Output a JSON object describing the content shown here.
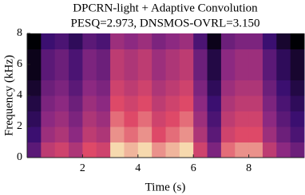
{
  "chart_data": {
    "type": "spectrogram",
    "title": "DPCRN-light + Adaptive Convolution",
    "subtitle": "PESQ=2.973, DNSMOS-OVRL=3.150",
    "x_label": "Time (s)",
    "y_label": "Frequency (kHz)",
    "xlim": [
      0,
      10
    ],
    "ylim": [
      0,
      8
    ],
    "xticks": [
      2,
      4,
      6,
      8
    ],
    "yticks": [
      0,
      2,
      4,
      6,
      8
    ],
    "colormap": [
      "#000004",
      "#3b0f70",
      "#8c2981",
      "#de4968",
      "#fcfdbf"
    ],
    "z": [
      [
        0.35,
        0.65,
        0.7,
        0.6,
        0.75,
        0.7,
        0.95,
        0.9,
        0.95,
        0.85,
        0.9,
        0.95,
        0.7,
        0.45,
        0.8,
        0.85,
        0.85,
        0.65,
        0.5,
        0.4
      ],
      [
        0.25,
        0.55,
        0.6,
        0.5,
        0.65,
        0.6,
        0.85,
        0.8,
        0.85,
        0.75,
        0.8,
        0.85,
        0.6,
        0.35,
        0.7,
        0.75,
        0.75,
        0.55,
        0.4,
        0.3
      ],
      [
        0.2,
        0.5,
        0.55,
        0.45,
        0.6,
        0.55,
        0.8,
        0.75,
        0.8,
        0.7,
        0.75,
        0.8,
        0.55,
        0.3,
        0.65,
        0.7,
        0.7,
        0.5,
        0.35,
        0.25
      ],
      [
        0.15,
        0.45,
        0.5,
        0.4,
        0.55,
        0.5,
        0.75,
        0.7,
        0.75,
        0.65,
        0.7,
        0.75,
        0.5,
        0.25,
        0.6,
        0.65,
        0.65,
        0.45,
        0.3,
        0.2
      ],
      [
        0.1,
        0.4,
        0.45,
        0.35,
        0.5,
        0.45,
        0.7,
        0.65,
        0.7,
        0.6,
        0.65,
        0.7,
        0.45,
        0.2,
        0.55,
        0.6,
        0.6,
        0.4,
        0.25,
        0.15
      ],
      [
        0.05,
        0.35,
        0.4,
        0.3,
        0.45,
        0.4,
        0.65,
        0.6,
        0.65,
        0.55,
        0.6,
        0.65,
        0.4,
        0.15,
        0.5,
        0.55,
        0.55,
        0.35,
        0.2,
        0.1
      ],
      [
        0.05,
        0.35,
        0.4,
        0.3,
        0.45,
        0.4,
        0.65,
        0.6,
        0.65,
        0.55,
        0.6,
        0.65,
        0.4,
        0.15,
        0.5,
        0.55,
        0.55,
        0.35,
        0.2,
        0.1
      ],
      [
        0,
        0.25,
        0.3,
        0.2,
        0.35,
        0.3,
        0.55,
        0.5,
        0.55,
        0.45,
        0.5,
        0.55,
        0.3,
        0.05,
        0.4,
        0.45,
        0.45,
        0.25,
        0.1,
        0
      ]
    ]
  }
}
